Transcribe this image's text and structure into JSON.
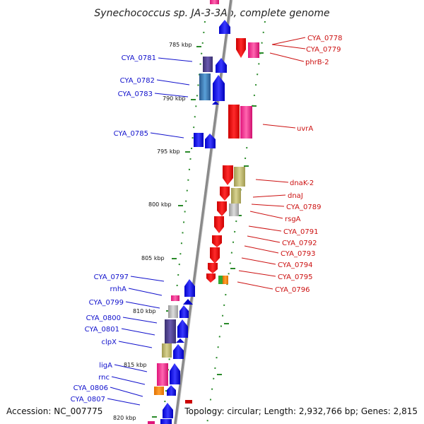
{
  "title": "Synechococcus sp. JA-3-3Ab, complete genome",
  "footer": {
    "accession": "Accession: NC_007775",
    "topology": "Topology: circular; Length: 2,932,766 bp; Genes: 2,815"
  },
  "colors": {
    "forward_label": "#1010cc",
    "reverse_label": "#cc1010",
    "tick": "#2a8a2a",
    "backbone": "#999999"
  },
  "kbp_ticks": [
    {
      "label": "785 kbp"
    },
    {
      "label": "790 kbp"
    },
    {
      "label": "795 kbp"
    },
    {
      "label": "800 kbp"
    },
    {
      "label": "805 kbp"
    },
    {
      "label": "810 kbp"
    },
    {
      "label": "815 kbp"
    },
    {
      "label": "820 kbp"
    }
  ],
  "left_genes": [
    {
      "label": "CYA_0781"
    },
    {
      "label": "CYA_0782"
    },
    {
      "label": "CYA_0783"
    },
    {
      "label": "CYA_0785"
    },
    {
      "label": "CYA_0797"
    },
    {
      "label": "rnhA"
    },
    {
      "label": "CYA_0799"
    },
    {
      "label": "CYA_0800"
    },
    {
      "label": "CYA_0801"
    },
    {
      "label": "clpX"
    },
    {
      "label": "ligA"
    },
    {
      "label": "rnc"
    },
    {
      "label": "CYA_0806"
    },
    {
      "label": "CYA_0807"
    }
  ],
  "right_genes": [
    {
      "label": "CYA_0778"
    },
    {
      "label": "CYA_0779"
    },
    {
      "label": "phrB-2"
    },
    {
      "label": "uvrA"
    },
    {
      "label": "dnaK-2"
    },
    {
      "label": "dnaJ"
    },
    {
      "label": "CYA_0789"
    },
    {
      "label": "rsgA"
    },
    {
      "label": "CYA_0791"
    },
    {
      "label": "CYA_0792"
    },
    {
      "label": "CYA_0793"
    },
    {
      "label": "CYA_0794"
    },
    {
      "label": "CYA_0795"
    },
    {
      "label": "CYA_0796"
    }
  ]
}
